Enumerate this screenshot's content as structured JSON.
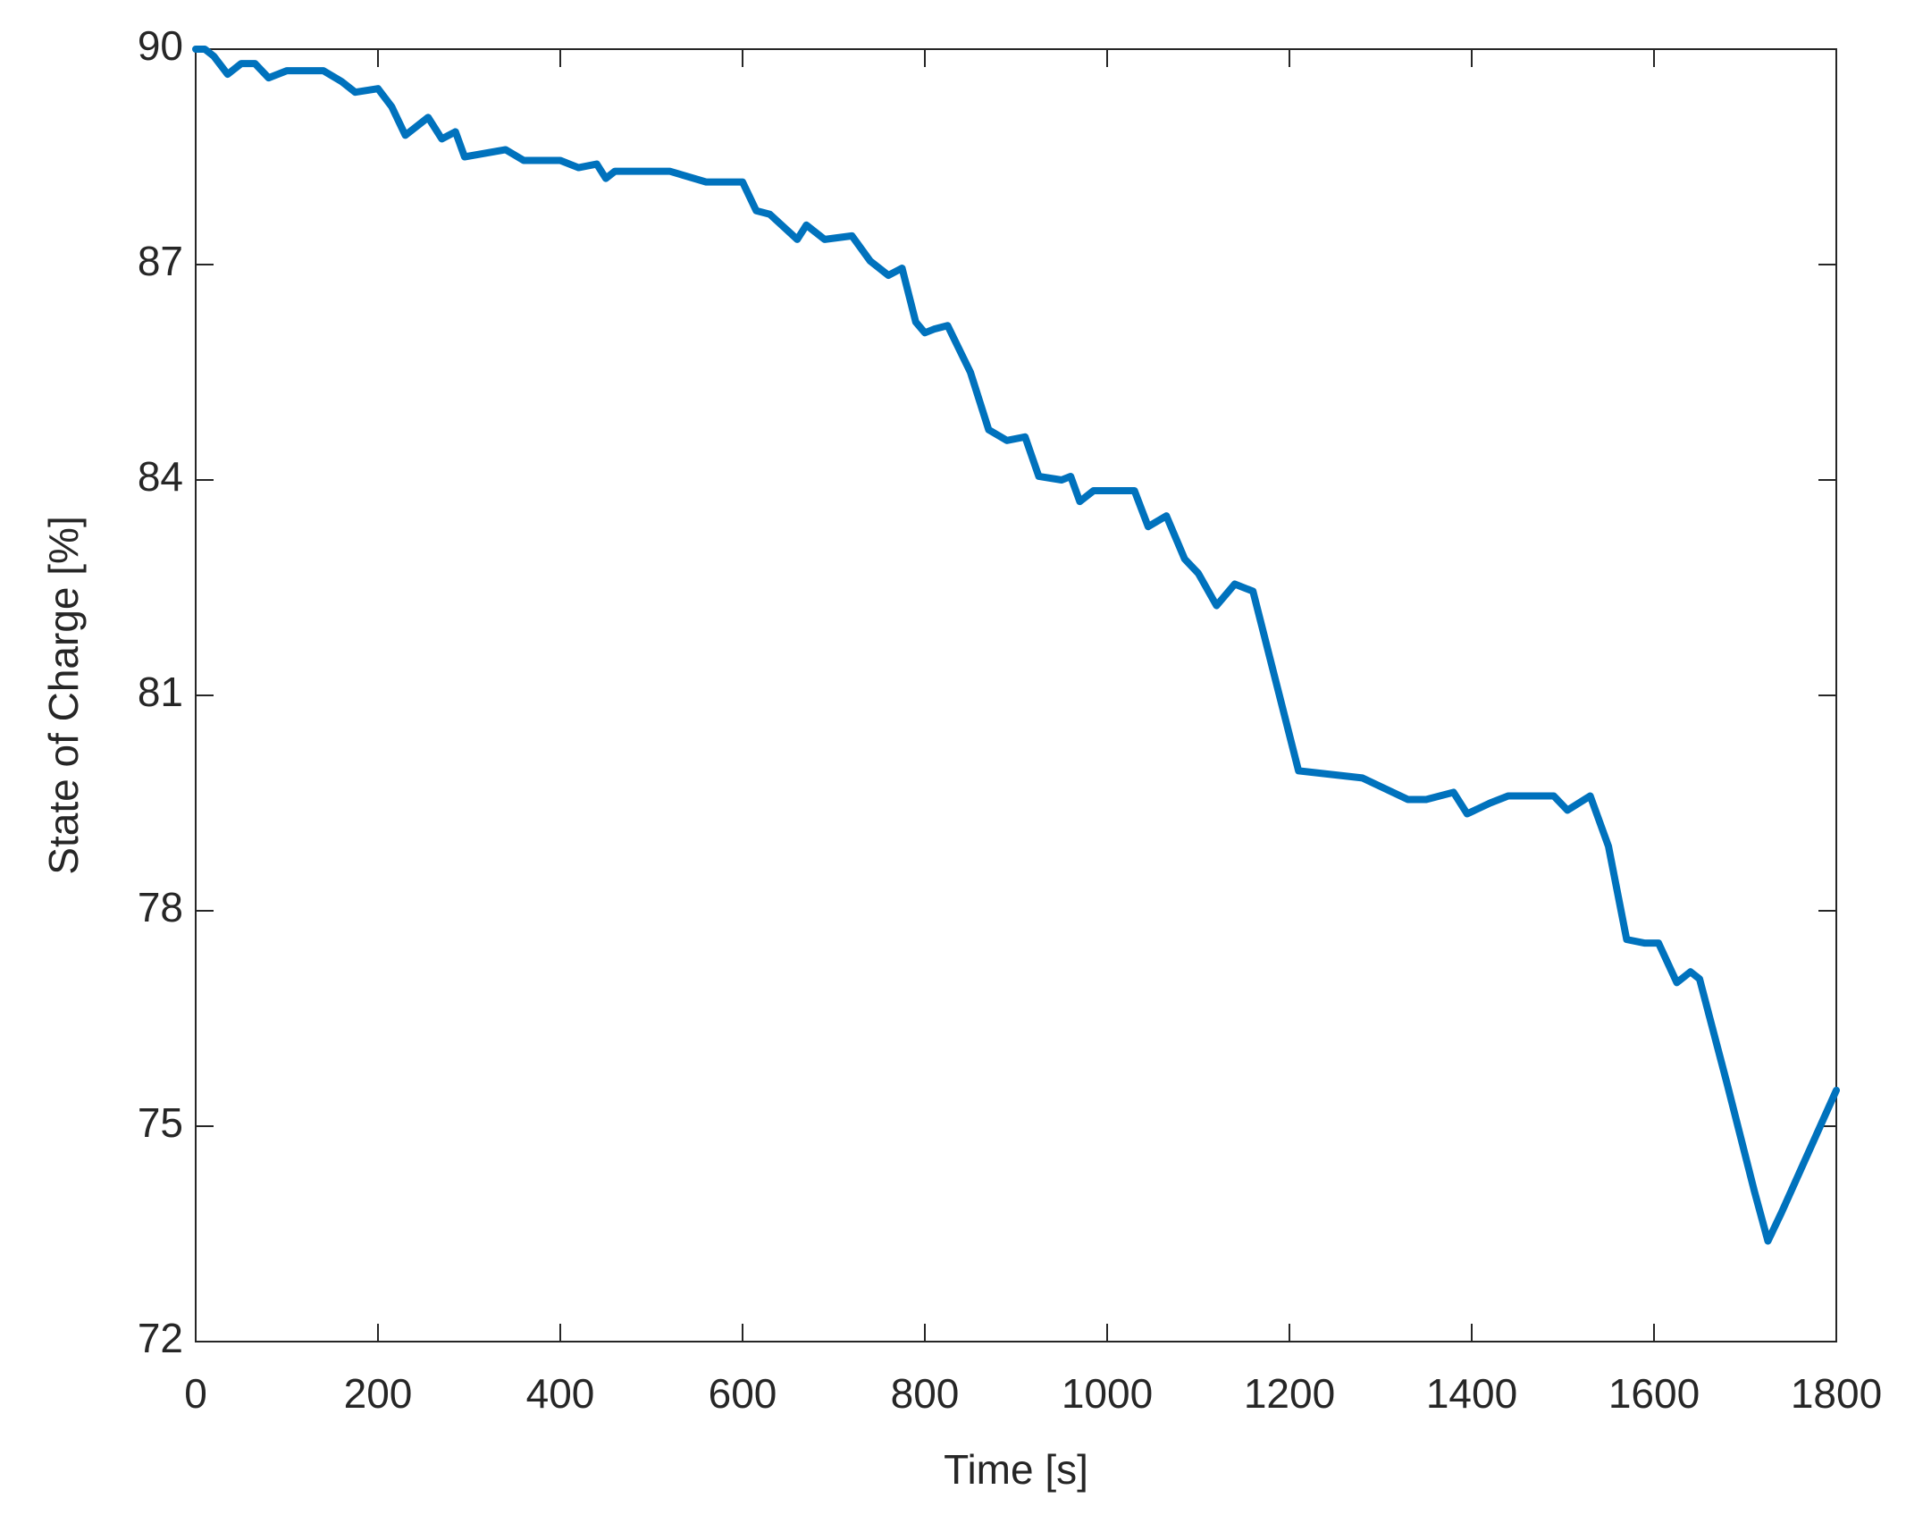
{
  "chart_data": {
    "type": "line",
    "xlabel": "Time [s]",
    "ylabel": "State of Charge [%]",
    "xlim": [
      0,
      1800
    ],
    "xticks": [
      0,
      200,
      400,
      600,
      800,
      1000,
      1200,
      1400,
      1600,
      1800
    ],
    "ylim": [
      72,
      90
    ],
    "yticks": [
      72,
      75,
      78,
      81,
      84,
      87,
      90
    ],
    "grid": false,
    "series": [
      {
        "color": "#0072BD",
        "x": [
          0,
          10,
          20,
          35,
          50,
          65,
          80,
          100,
          140,
          160,
          175,
          200,
          215,
          230,
          255,
          270,
          285,
          295,
          340,
          360,
          400,
          420,
          440,
          450,
          460,
          520,
          560,
          600,
          615,
          630,
          660,
          670,
          690,
          720,
          740,
          760,
          775,
          790,
          800,
          810,
          825,
          850,
          870,
          890,
          910,
          925,
          950,
          960,
          970,
          985,
          1030,
          1045,
          1065,
          1085,
          1100,
          1120,
          1140,
          1160,
          1210,
          1280,
          1330,
          1350,
          1380,
          1395,
          1420,
          1440,
          1490,
          1505,
          1530,
          1550,
          1570,
          1590,
          1605,
          1625,
          1640,
          1650,
          1680,
          1710,
          1725,
          1740,
          1800
        ],
        "values": [
          90,
          90,
          89.9,
          89.65,
          89.8,
          89.8,
          89.6,
          89.7,
          89.7,
          89.55,
          89.4,
          89.45,
          89.2,
          88.8,
          89.05,
          88.75,
          88.85,
          88.5,
          88.6,
          88.45,
          88.45,
          88.35,
          88.4,
          88.2,
          88.3,
          88.3,
          88.15,
          88.15,
          87.75,
          87.7,
          87.35,
          87.55,
          87.35,
          87.4,
          87.05,
          86.85,
          86.95,
          86.2,
          86.05,
          86.1,
          86.15,
          85.5,
          84.7,
          84.55,
          84.6,
          84.05,
          84,
          84.05,
          83.7,
          83.85,
          83.85,
          83.35,
          83.5,
          82.9,
          82.7,
          82.25,
          82.55,
          82.45,
          79.95,
          79.85,
          79.55,
          79.55,
          79.65,
          79.35,
          79.5,
          79.6,
          79.6,
          79.4,
          79.6,
          78.9,
          77.6,
          77.55,
          77.55,
          77,
          77.15,
          77.05,
          75.6,
          74.1,
          73.4,
          73.8,
          75.5
        ]
      }
    ]
  }
}
